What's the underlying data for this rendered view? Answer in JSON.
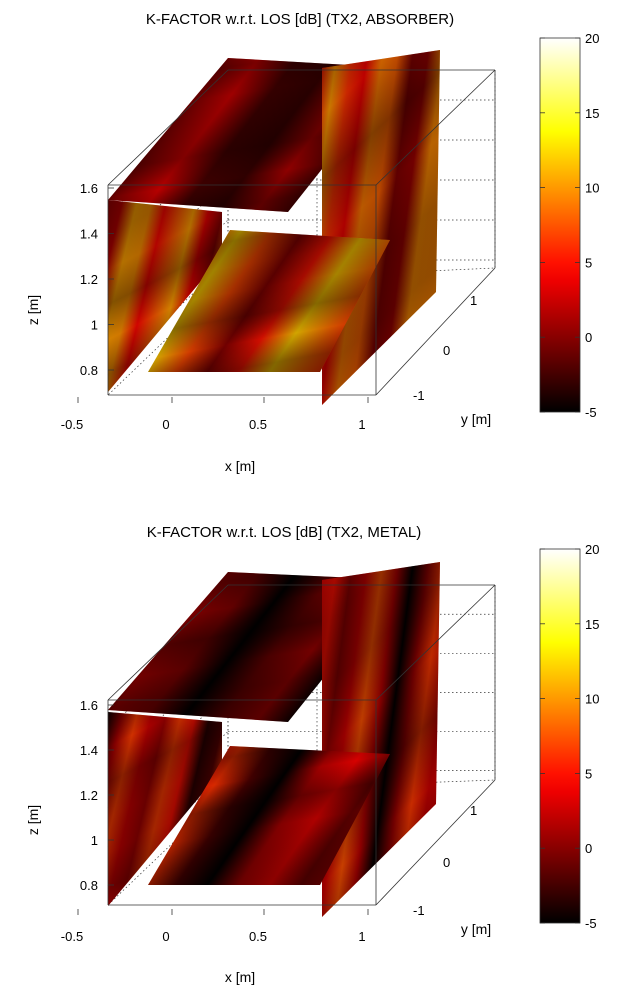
{
  "chart_data": [
    {
      "type": "heatmap",
      "variant": "3d-slice-volume",
      "title": "K-FACTOR w.r.t. LOS [dB] (TX2, ABSORBER)",
      "xlabel": "x [m]",
      "ylabel": "y [m]",
      "zlabel": "z [m]",
      "xlim": [
        -0.5,
        1
      ],
      "ylim": [
        -1.5,
        1.5
      ],
      "zlim": [
        0.7,
        1.75
      ],
      "x_ticks": [
        -0.5,
        0,
        0.5,
        1
      ],
      "x_tick_labels": [
        "-0.5",
        "0",
        "0.5",
        "1"
      ],
      "y_ticks": [
        -1,
        0,
        1
      ],
      "y_tick_labels": [
        "-1",
        "0",
        "1"
      ],
      "z_ticks": [
        0.8,
        1,
        1.2,
        1.4,
        1.6
      ],
      "z_tick_labels": [
        "0.8",
        "1",
        "1.2",
        "1.4",
        "1.6"
      ],
      "colorbar": {
        "colormap": "hot",
        "range": [
          -5,
          20
        ],
        "ticks": [
          -5,
          0,
          5,
          10,
          15,
          20
        ],
        "tick_labels": [
          "-5",
          "0",
          "5",
          "10",
          "15",
          "20"
        ]
      },
      "slices": [
        {
          "name": "top-plane",
          "mean_db": -1.5
        },
        {
          "name": "left-wall",
          "mean_db": 6.5
        },
        {
          "name": "right-wall",
          "mean_db": 5.5
        },
        {
          "name": "floor-plane",
          "mean_db": 7.0
        }
      ],
      "grid": true
    },
    {
      "type": "heatmap",
      "variant": "3d-slice-volume",
      "title": "K-FACTOR w.r.t. LOS [dB] (TX2, METAL)",
      "xlabel": "x [m]",
      "ylabel": "y [m]",
      "zlabel": "z [m]",
      "xlim": [
        -0.5,
        1
      ],
      "ylim": [
        -1.5,
        1.5
      ],
      "zlim": [
        0.7,
        1.75
      ],
      "x_ticks": [
        -0.5,
        0,
        0.5,
        1
      ],
      "x_tick_labels": [
        "-0.5",
        "0",
        "0.5",
        "1"
      ],
      "y_ticks": [
        -1,
        0,
        1
      ],
      "y_tick_labels": [
        "-1",
        "0",
        "1"
      ],
      "z_ticks": [
        0.8,
        1,
        1.2,
        1.4,
        1.6
      ],
      "z_tick_labels": [
        "0.8",
        "1",
        "1.2",
        "1.4",
        "1.6"
      ],
      "colorbar": {
        "colormap": "hot",
        "range": [
          -5,
          20
        ],
        "ticks": [
          -5,
          0,
          5,
          10,
          15,
          20
        ],
        "tick_labels": [
          "-5",
          "0",
          "5",
          "10",
          "15",
          "20"
        ]
      },
      "slices": [
        {
          "name": "top-plane",
          "mean_db": -3.0
        },
        {
          "name": "left-wall",
          "mean_db": 2.5
        },
        {
          "name": "right-wall",
          "mean_db": 2.0
        },
        {
          "name": "floor-plane",
          "mean_db": 1.0
        }
      ],
      "grid": true
    }
  ]
}
